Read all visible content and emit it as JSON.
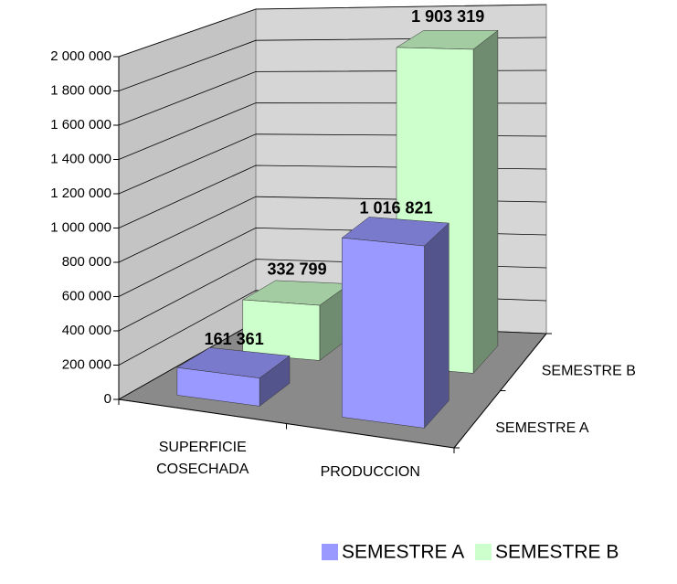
{
  "chart_data": {
    "type": "bar",
    "categories": [
      "SUPERFICIE COSECHADA",
      "PRODUCCION"
    ],
    "series": [
      {
        "name": "SEMESTRE A",
        "color": "#9999ff",
        "values": [
          161361,
          1016821
        ],
        "value_labels": [
          "161 361",
          "1 016 821"
        ]
      },
      {
        "name": "SEMESTRE B",
        "color": "#ccffcc",
        "values": [
          332799,
          1903319
        ],
        "value_labels": [
          "332 799",
          "1 903 319"
        ]
      }
    ],
    "ylim": [
      0,
      2000000
    ],
    "yticks": [
      0,
      {
        "value": 200000,
        "label": "200 000"
      },
      {
        "value": 400000,
        "label": "400 000"
      },
      {
        "value": 600000,
        "label": "600 000"
      },
      {
        "value": 800000,
        "label": "800 000"
      },
      {
        "value": 1000000,
        "label": "1 000 000"
      },
      {
        "value": 1200000,
        "label": "1 200 000"
      },
      {
        "value": 1400000,
        "label": "1 400 000"
      },
      {
        "value": 1600000,
        "label": "1 600 000"
      },
      {
        "value": 1800000,
        "label": "1 800 000"
      },
      {
        "value": 2000000,
        "label": "2 000 000"
      }
    ],
    "grid": true,
    "legend": "bottom"
  }
}
